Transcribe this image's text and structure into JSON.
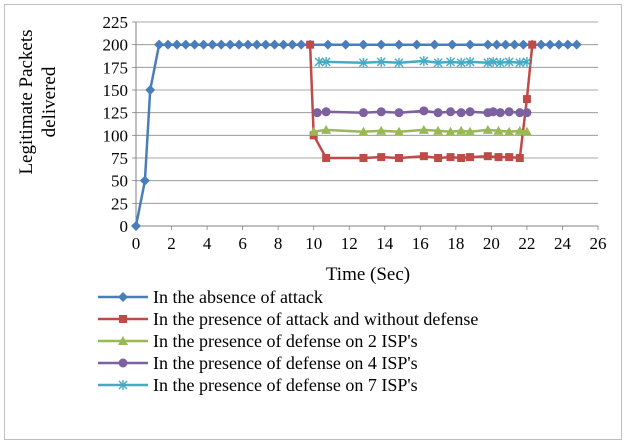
{
  "chart_data": {
    "type": "line",
    "title": "",
    "xlabel": "Time (Sec)",
    "ylabel": "Legitimate Packets delivered",
    "ylabel_lines": [
      "Legitimate Packets",
      "delivered"
    ],
    "xlim": [
      0,
      26
    ],
    "ylim": [
      0,
      225
    ],
    "xticks": [
      0,
      2,
      4,
      6,
      8,
      10,
      12,
      14,
      16,
      18,
      20,
      22,
      24,
      26
    ],
    "yticks": [
      0,
      25,
      50,
      75,
      100,
      125,
      150,
      175,
      200,
      225
    ],
    "grid": "horizontal",
    "legend": "bottom",
    "series": [
      {
        "name": "In the absence of attack",
        "color": "#4a7ebb",
        "marker": "diamond",
        "points": [
          [
            0,
            0
          ],
          [
            0.5,
            50
          ],
          [
            0.8,
            150
          ],
          [
            1.3,
            200
          ],
          [
            1.8,
            200
          ],
          [
            2.3,
            200
          ],
          [
            2.8,
            200
          ],
          [
            3.3,
            200
          ],
          [
            3.8,
            200
          ],
          [
            4.3,
            200
          ],
          [
            4.8,
            200
          ],
          [
            5.3,
            200
          ],
          [
            5.8,
            200
          ],
          [
            6.3,
            200
          ],
          [
            6.8,
            200
          ],
          [
            7.3,
            200
          ],
          [
            7.8,
            200
          ],
          [
            8.3,
            200
          ],
          [
            8.8,
            200
          ],
          [
            9.3,
            200
          ],
          [
            9.8,
            200
          ],
          [
            10.8,
            200
          ],
          [
            11.8,
            200
          ],
          [
            12.8,
            200
          ],
          [
            13.8,
            200
          ],
          [
            14.8,
            200
          ],
          [
            15.8,
            200
          ],
          [
            16.8,
            200
          ],
          [
            17.8,
            200
          ],
          [
            18.8,
            200
          ],
          [
            19.8,
            200
          ],
          [
            20.3,
            200
          ],
          [
            20.8,
            200
          ],
          [
            21.3,
            200
          ],
          [
            21.8,
            200
          ],
          [
            22.3,
            200
          ],
          [
            22.8,
            200
          ],
          [
            23.3,
            200
          ],
          [
            23.8,
            200
          ],
          [
            24.3,
            200
          ],
          [
            24.8,
            200
          ]
        ]
      },
      {
        "name": "In the presence of attack and without defense",
        "color": "#be4b48",
        "marker": "square",
        "points": [
          [
            9.8,
            200
          ],
          [
            10,
            100
          ],
          [
            10.7,
            75
          ],
          [
            12.8,
            75
          ],
          [
            13.8,
            76
          ],
          [
            14.8,
            75
          ],
          [
            16.2,
            77
          ],
          [
            17,
            75
          ],
          [
            17.7,
            76
          ],
          [
            18.3,
            75
          ],
          [
            18.8,
            76
          ],
          [
            19.8,
            77
          ],
          [
            20.4,
            76
          ],
          [
            21,
            76
          ],
          [
            21.6,
            75
          ],
          [
            22,
            140
          ],
          [
            22.3,
            200
          ]
        ]
      },
      {
        "name": "In the presence of defense on 2 ISP's",
        "color": "#98b954",
        "marker": "triangle",
        "points": [
          [
            10,
            104
          ],
          [
            10.7,
            106
          ],
          [
            12.8,
            104
          ],
          [
            13.8,
            105
          ],
          [
            14.8,
            104
          ],
          [
            16.2,
            106
          ],
          [
            17,
            105
          ],
          [
            17.7,
            104
          ],
          [
            18.3,
            105
          ],
          [
            18.8,
            104
          ],
          [
            19.8,
            106
          ],
          [
            20.4,
            105
          ],
          [
            21,
            104
          ],
          [
            21.6,
            105
          ],
          [
            22,
            104
          ]
        ]
      },
      {
        "name": "In the presence of defense on 4 ISP's",
        "color": "#7d60a0",
        "marker": "circle",
        "points": [
          [
            10.2,
            125
          ],
          [
            10.7,
            126
          ],
          [
            12.8,
            125
          ],
          [
            13.8,
            126
          ],
          [
            14.8,
            125
          ],
          [
            16.2,
            127
          ],
          [
            17,
            125
          ],
          [
            17.7,
            126
          ],
          [
            18.3,
            125
          ],
          [
            18.8,
            126
          ],
          [
            19.8,
            125
          ],
          [
            20.1,
            126
          ],
          [
            20.5,
            125
          ],
          [
            21,
            126
          ],
          [
            21.6,
            125
          ],
          [
            22,
            125
          ]
        ]
      },
      {
        "name": "In the presence of defense on 7 ISP's",
        "color": "#46aac5",
        "marker": "asterisk",
        "points": [
          [
            10.3,
            181
          ],
          [
            10.7,
            181
          ],
          [
            12.8,
            180
          ],
          [
            13.8,
            181
          ],
          [
            14.8,
            180
          ],
          [
            16.2,
            182
          ],
          [
            17,
            180
          ],
          [
            17.7,
            181
          ],
          [
            18.3,
            180
          ],
          [
            18.8,
            181
          ],
          [
            19.8,
            180
          ],
          [
            20.1,
            181
          ],
          [
            20.5,
            180
          ],
          [
            21,
            181
          ],
          [
            21.6,
            180
          ],
          [
            22,
            181
          ]
        ]
      }
    ]
  }
}
